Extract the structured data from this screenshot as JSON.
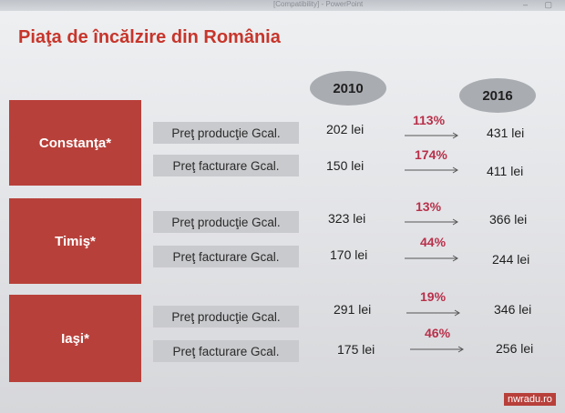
{
  "window": {
    "title": "[Compatibility] - PowerPoint",
    "controls": "– ▢"
  },
  "slide": {
    "title": "Piaţa de încălzire din România",
    "years": [
      "2010",
      "2016"
    ],
    "regions": [
      {
        "name": "Constanţa*",
        "rows": [
          {
            "label": "Preţ producţie Gcal.",
            "v2010": "202 lei",
            "pct": "113%",
            "v2016": "431 lei"
          },
          {
            "label": "Preţ facturare Gcal.",
            "v2010": "150 lei",
            "pct": "174%",
            "v2016": "411 lei"
          }
        ]
      },
      {
        "name": "Timiş*",
        "rows": [
          {
            "label": "Preţ producţie Gcal.",
            "v2010": "323 lei",
            "pct": "13%",
            "v2016": "366 lei"
          },
          {
            "label": "Preţ facturare Gcal.",
            "v2010": "170 lei",
            "pct": "44%",
            "v2016": "244 lei"
          }
        ]
      },
      {
        "name": "Iaşi*",
        "rows": [
          {
            "label": "Preţ producţie Gcal.",
            "v2010": "291 lei",
            "pct": "19%",
            "v2016": "346 lei"
          },
          {
            "label": "Preţ facturare Gcal.",
            "v2010": "175 lei",
            "pct": "46%",
            "v2016": "256 lei"
          }
        ]
      }
    ],
    "watermark": "nwradu.ro"
  },
  "colors": {
    "accent": "#c7352b",
    "region_fill": "#b8403a",
    "label_fill": "#c9cacd",
    "year_fill": "#a9acb1",
    "percent": "#b8304a"
  },
  "icons": [
    "arrow-right-icon"
  ]
}
